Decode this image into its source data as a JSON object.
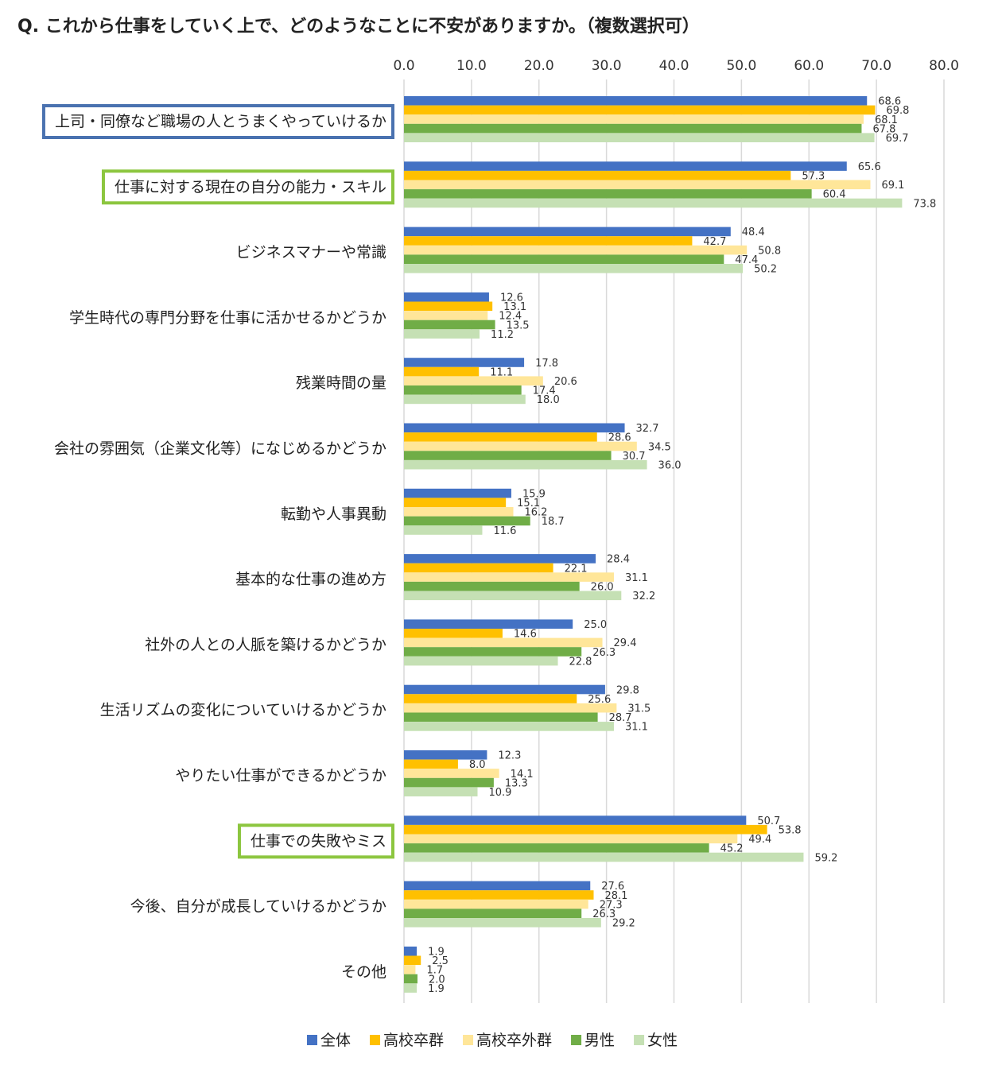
{
  "chart_data": {
    "type": "bar",
    "orientation": "horizontal",
    "title": "Q.  これから仕事をしていく上で、どのようなことに不安がありますか。（複数選択可）",
    "xlim": [
      0,
      80
    ],
    "ticks": [
      "0.0",
      "10.0",
      "20.0",
      "30.0",
      "40.0",
      "50.0",
      "60.0",
      "70.0",
      "80.0"
    ],
    "grid": true,
    "legend_position": "bottom",
    "categories": [
      "上司・同僚など職場の人とうまくやっていけるか",
      "仕事に対する現在の自分の能力・スキル",
      "ビジネスマナーや常識",
      "学生時代の専門分野を仕事に活かせるかどうか",
      "残業時間の量",
      "会社の雰囲気（企業文化等）になじめるかどうか",
      "転勤や人事異動",
      "基本的な仕事の進め方",
      "社外の人との人脈を築けるかどうか",
      "生活リズムの変化についていけるかどうか",
      "やりたい仕事ができるかどうか",
      "仕事での失敗やミス",
      "今後、自分が成長していけるかどうか",
      "その他"
    ],
    "highlighted": [
      {
        "index": 0,
        "color": "#4a72b0"
      },
      {
        "index": 1,
        "color": "#8cc63f"
      },
      {
        "index": 11,
        "color": "#8cc63f"
      }
    ],
    "series": [
      {
        "name": "全体",
        "color": "#4472c4",
        "values": [
          68.6,
          65.6,
          48.4,
          12.6,
          17.8,
          32.7,
          15.9,
          28.4,
          25.0,
          29.8,
          12.3,
          50.7,
          27.6,
          1.9
        ]
      },
      {
        "name": "高校卒群",
        "color": "#ffc000",
        "values": [
          69.8,
          57.3,
          42.7,
          13.1,
          11.1,
          28.6,
          15.1,
          22.1,
          14.6,
          25.6,
          8.0,
          53.8,
          28.1,
          2.5
        ]
      },
      {
        "name": "高校卒外群",
        "color": "#ffe699",
        "values": [
          68.1,
          69.1,
          50.8,
          12.4,
          20.6,
          34.5,
          16.2,
          31.1,
          29.4,
          31.5,
          14.1,
          49.4,
          27.3,
          1.7
        ]
      },
      {
        "name": "男性",
        "color": "#70ad47",
        "values": [
          67.8,
          60.4,
          47.4,
          13.5,
          17.4,
          30.7,
          18.7,
          26.0,
          26.3,
          28.7,
          13.3,
          45.2,
          26.3,
          2.0
        ]
      },
      {
        "name": "女性",
        "color": "#c5e0b4",
        "values": [
          69.7,
          73.8,
          50.2,
          11.2,
          18.0,
          36.0,
          11.6,
          32.2,
          22.8,
          31.1,
          10.9,
          59.2,
          29.2,
          1.9
        ]
      }
    ]
  }
}
